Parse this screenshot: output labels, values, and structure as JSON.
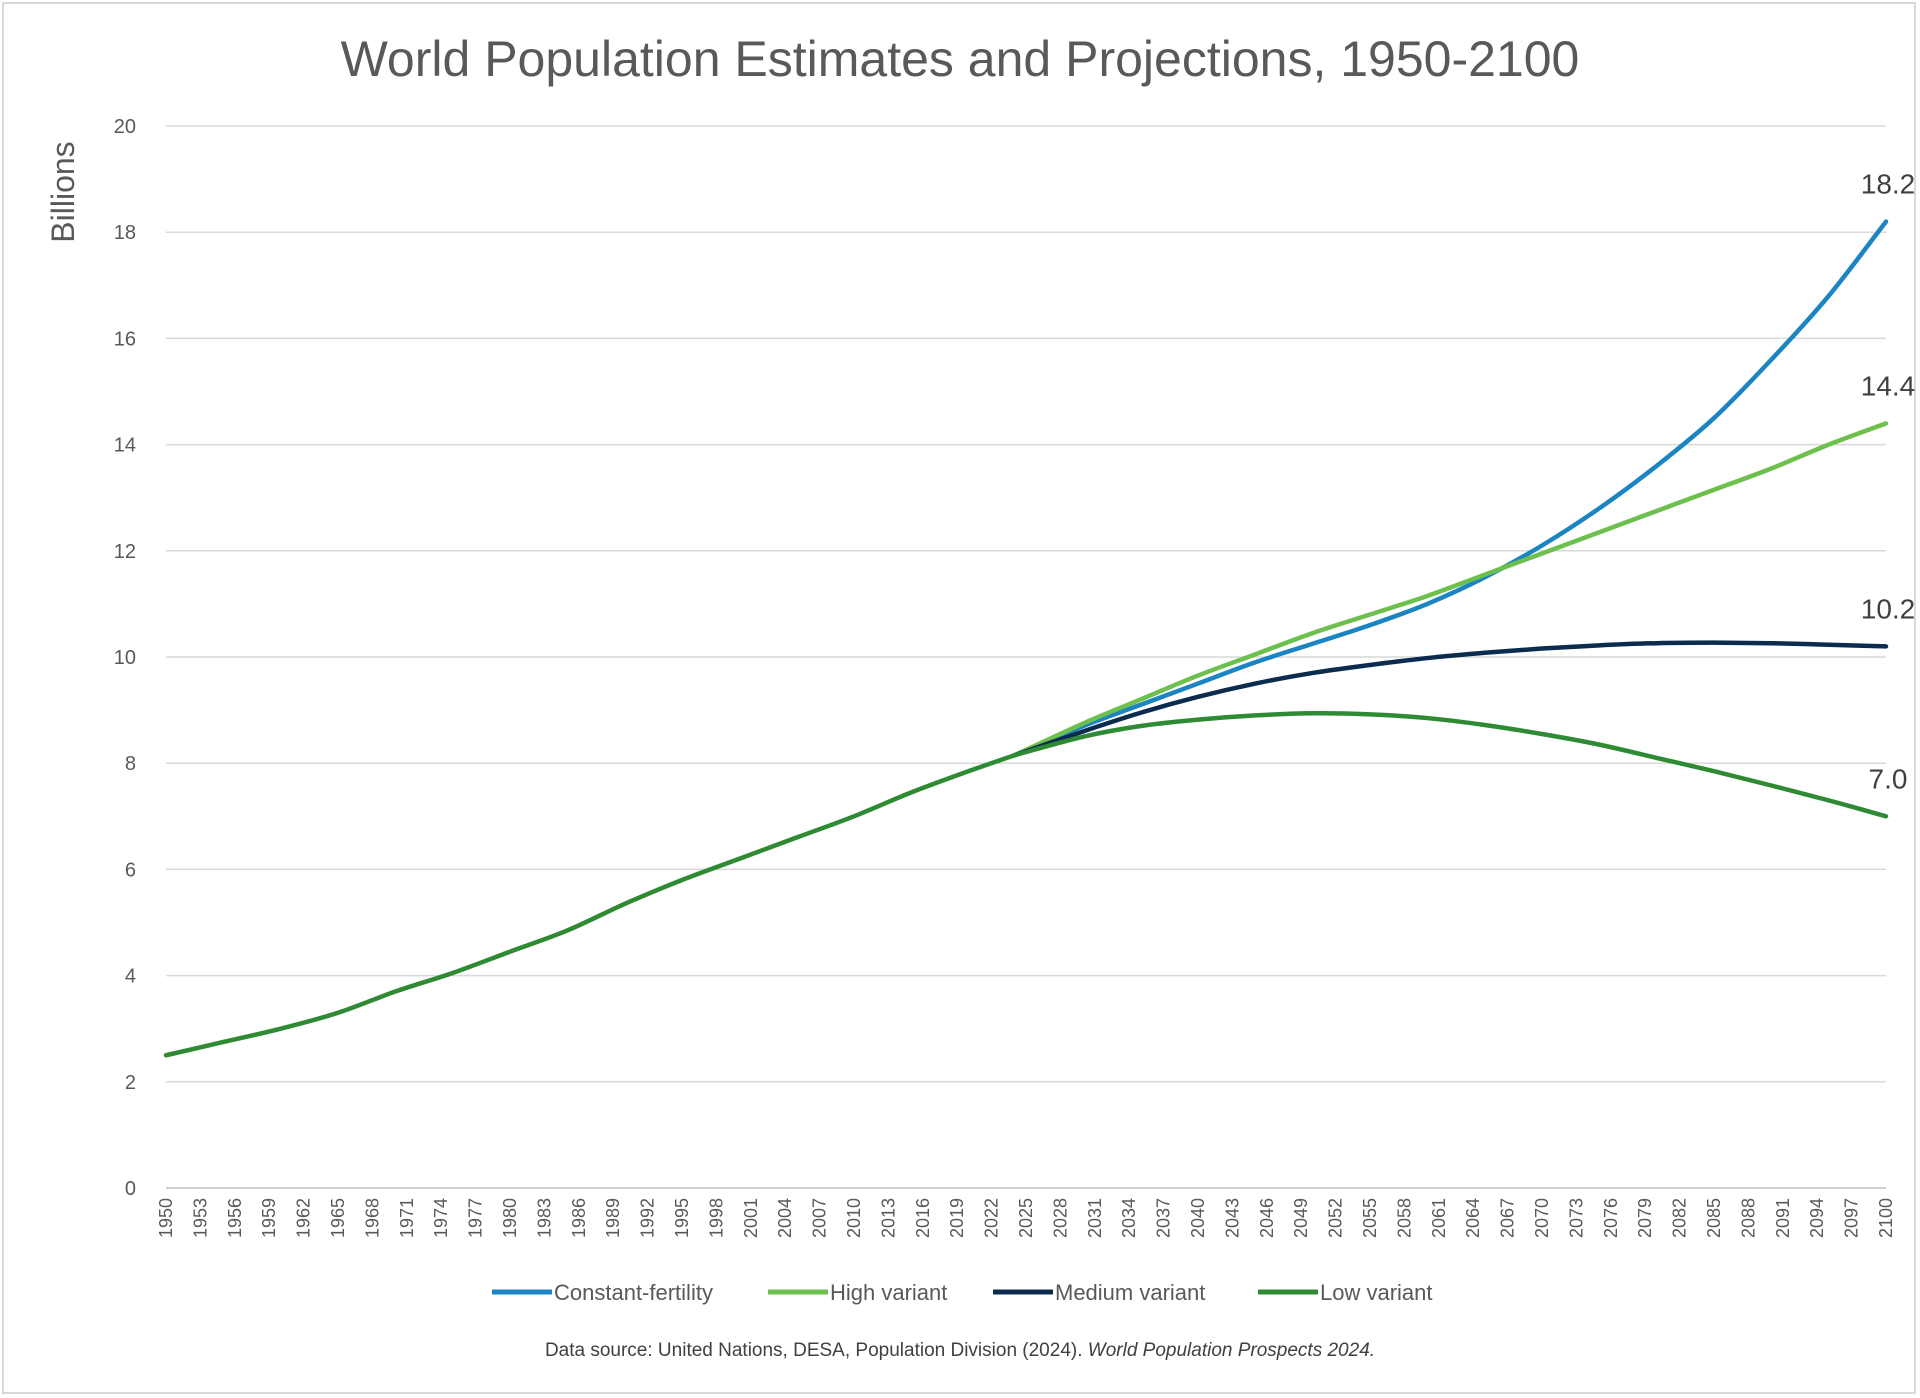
{
  "chart_data": {
    "type": "line",
    "title": "World Population Estimates and Projections, 1950-2100",
    "ylabel": "Billions",
    "xlabel": "",
    "ylim": [
      0,
      20
    ],
    "yticks": [
      0,
      2,
      4,
      6,
      8,
      10,
      12,
      14,
      16,
      18,
      20
    ],
    "xlim": [
      1950,
      2100
    ],
    "xtick_years": [
      1950,
      1953,
      1956,
      1959,
      1962,
      1965,
      1968,
      1971,
      1974,
      1977,
      1980,
      1983,
      1986,
      1989,
      1992,
      1995,
      1998,
      2001,
      2004,
      2007,
      2010,
      2013,
      2016,
      2019,
      2022,
      2025,
      2028,
      2031,
      2034,
      2037,
      2040,
      2043,
      2046,
      2049,
      2052,
      2055,
      2058,
      2061,
      2064,
      2067,
      2070,
      2073,
      2076,
      2079,
      2082,
      2085,
      2088,
      2091,
      2094,
      2097,
      2100
    ],
    "grid": true,
    "legend_position": "bottom",
    "historical": {
      "x": [
        1950,
        1955,
        1960,
        1965,
        1970,
        1975,
        1980,
        1985,
        1990,
        1995,
        2000,
        2005,
        2010,
        2015,
        2020,
        2024
      ],
      "values": [
        2.5,
        2.75,
        3.0,
        3.3,
        3.7,
        4.05,
        4.45,
        4.85,
        5.35,
        5.8,
        6.2,
        6.6,
        7.0,
        7.45,
        7.85,
        8.15
      ]
    },
    "series": [
      {
        "name": "Constant-fertility",
        "color": "#1b84c2",
        "x": [
          2024,
          2030,
          2035,
          2040,
          2045,
          2050,
          2055,
          2060,
          2065,
          2070,
          2075,
          2080,
          2085,
          2090,
          2095,
          2100
        ],
        "values": [
          8.15,
          8.7,
          9.1,
          9.5,
          9.9,
          10.25,
          10.6,
          11.0,
          11.5,
          12.1,
          12.8,
          13.6,
          14.5,
          15.6,
          16.8,
          18.2
        ],
        "end_label": "18.2"
      },
      {
        "name": "High variant",
        "color": "#6dc04d",
        "x": [
          2024,
          2030,
          2035,
          2040,
          2045,
          2050,
          2055,
          2060,
          2065,
          2070,
          2075,
          2080,
          2085,
          2090,
          2095,
          2100
        ],
        "values": [
          8.15,
          8.75,
          9.2,
          9.65,
          10.05,
          10.45,
          10.8,
          11.15,
          11.55,
          11.95,
          12.35,
          12.75,
          13.15,
          13.55,
          14.0,
          14.4
        ],
        "end_label": "14.4"
      },
      {
        "name": "Medium variant",
        "color": "#0c2c4f",
        "x": [
          2024,
          2030,
          2035,
          2040,
          2045,
          2050,
          2055,
          2060,
          2065,
          2070,
          2075,
          2080,
          2085,
          2090,
          2095,
          2100
        ],
        "values": [
          8.15,
          8.6,
          8.95,
          9.25,
          9.5,
          9.7,
          9.85,
          9.98,
          10.08,
          10.16,
          10.22,
          10.26,
          10.27,
          10.26,
          10.23,
          10.2
        ],
        "end_label": "10.2"
      },
      {
        "name": "Low variant",
        "color": "#2e8b34",
        "x": [
          2024,
          2030,
          2035,
          2040,
          2045,
          2050,
          2055,
          2060,
          2065,
          2070,
          2075,
          2080,
          2085,
          2090,
          2095,
          2100
        ],
        "values": [
          8.15,
          8.5,
          8.7,
          8.82,
          8.9,
          8.94,
          8.92,
          8.85,
          8.72,
          8.55,
          8.35,
          8.1,
          7.85,
          7.58,
          7.3,
          7.0
        ],
        "end_label": "7.0"
      }
    ],
    "source_prefix": "Data source: United Nations, DESA, Population Division (2024). ",
    "source_italic": "World Population Prospects 2024."
  }
}
